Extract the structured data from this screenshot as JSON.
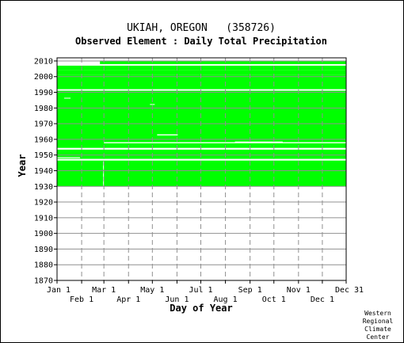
{
  "chart_data": {
    "type": "heatmap",
    "title": "UKIAH, OREGON   (358726)",
    "subtitle": "Observed Element : Daily Total Precipitation",
    "xlabel": "Day of Year",
    "ylabel": "Year",
    "xlim": [
      1,
      365
    ],
    "ylim": [
      1870,
      2012
    ],
    "grid": true,
    "data_color": "#00ff00",
    "background_color": "#ffffff",
    "grid_color": "#909090",
    "x_ticks_upper": [
      {
        "label": "Jan 1",
        "day": 1
      },
      {
        "label": "Mar 1",
        "day": 60
      },
      {
        "label": "May 1",
        "day": 121
      },
      {
        "label": "Jul 1",
        "day": 182
      },
      {
        "label": "Sep 1",
        "day": 244
      },
      {
        "label": "Nov 1",
        "day": 305
      },
      {
        "label": "Dec 31",
        "day": 365
      }
    ],
    "x_ticks_lower": [
      {
        "label": "Feb 1",
        "day": 32
      },
      {
        "label": "Apr 1",
        "day": 91
      },
      {
        "label": "Jun 1",
        "day": 152
      },
      {
        "label": "Aug 1",
        "day": 213
      },
      {
        "label": "Oct 1",
        "day": 274
      },
      {
        "label": "Dec 1",
        "day": 335
      }
    ],
    "y_ticks": [
      2010,
      2000,
      1990,
      1980,
      1970,
      1960,
      1950,
      1940,
      1930,
      1920,
      1910,
      1900,
      1890,
      1880,
      1870
    ],
    "coverage": [
      {
        "year_start": 1930,
        "year_end": 1946.5,
        "day_start": 1,
        "day_end": 365
      },
      {
        "year_start": 1947.5,
        "year_end": 1953.5,
        "day_start": 1,
        "day_end": 365
      },
      {
        "year_start": 1954.5,
        "year_end": 1991,
        "day_start": 1,
        "day_end": 365
      },
      {
        "year_start": 1992,
        "year_end": 2001,
        "day_start": 1,
        "day_end": 365
      },
      {
        "year_start": 2001,
        "year_end": 2004,
        "day_start": 1,
        "day_end": 365
      },
      {
        "year_start": 2004,
        "year_end": 2007,
        "day_start": 1,
        "day_end": 365
      },
      {
        "year_start": 2008,
        "year_end": 2010,
        "day_start": 55,
        "day_end": 365
      }
    ],
    "gaps": [
      {
        "year_start": 1930,
        "year_end": 1946,
        "day_start": 59,
        "day_end": 60
      },
      {
        "year_start": 1957.5,
        "year_end": 1958.2,
        "day_start": 60,
        "day_end": 365
      },
      {
        "year_start": 1962.5,
        "year_end": 1963.2,
        "day_start": 127,
        "day_end": 153
      },
      {
        "year_start": 1958,
        "year_end": 1958.6,
        "day_start": 225,
        "day_end": 285
      },
      {
        "year_start": 1948,
        "year_end": 1948.6,
        "day_start": 1,
        "day_end": 30
      },
      {
        "year_start": 1953.5,
        "year_end": 1954.5,
        "day_start": 1,
        "day_end": 365
      },
      {
        "year_start": 1946.5,
        "year_end": 1947.5,
        "day_start": 1,
        "day_end": 365
      },
      {
        "year_start": 1982,
        "year_end": 1982.5,
        "day_start": 118,
        "day_end": 124
      },
      {
        "year_start": 1986,
        "year_end": 1986.5,
        "day_start": 10,
        "day_end": 18
      }
    ]
  },
  "credit": {
    "line1": "Western",
    "line2": "Regional",
    "line3": "Climate",
    "line4": "Center"
  }
}
